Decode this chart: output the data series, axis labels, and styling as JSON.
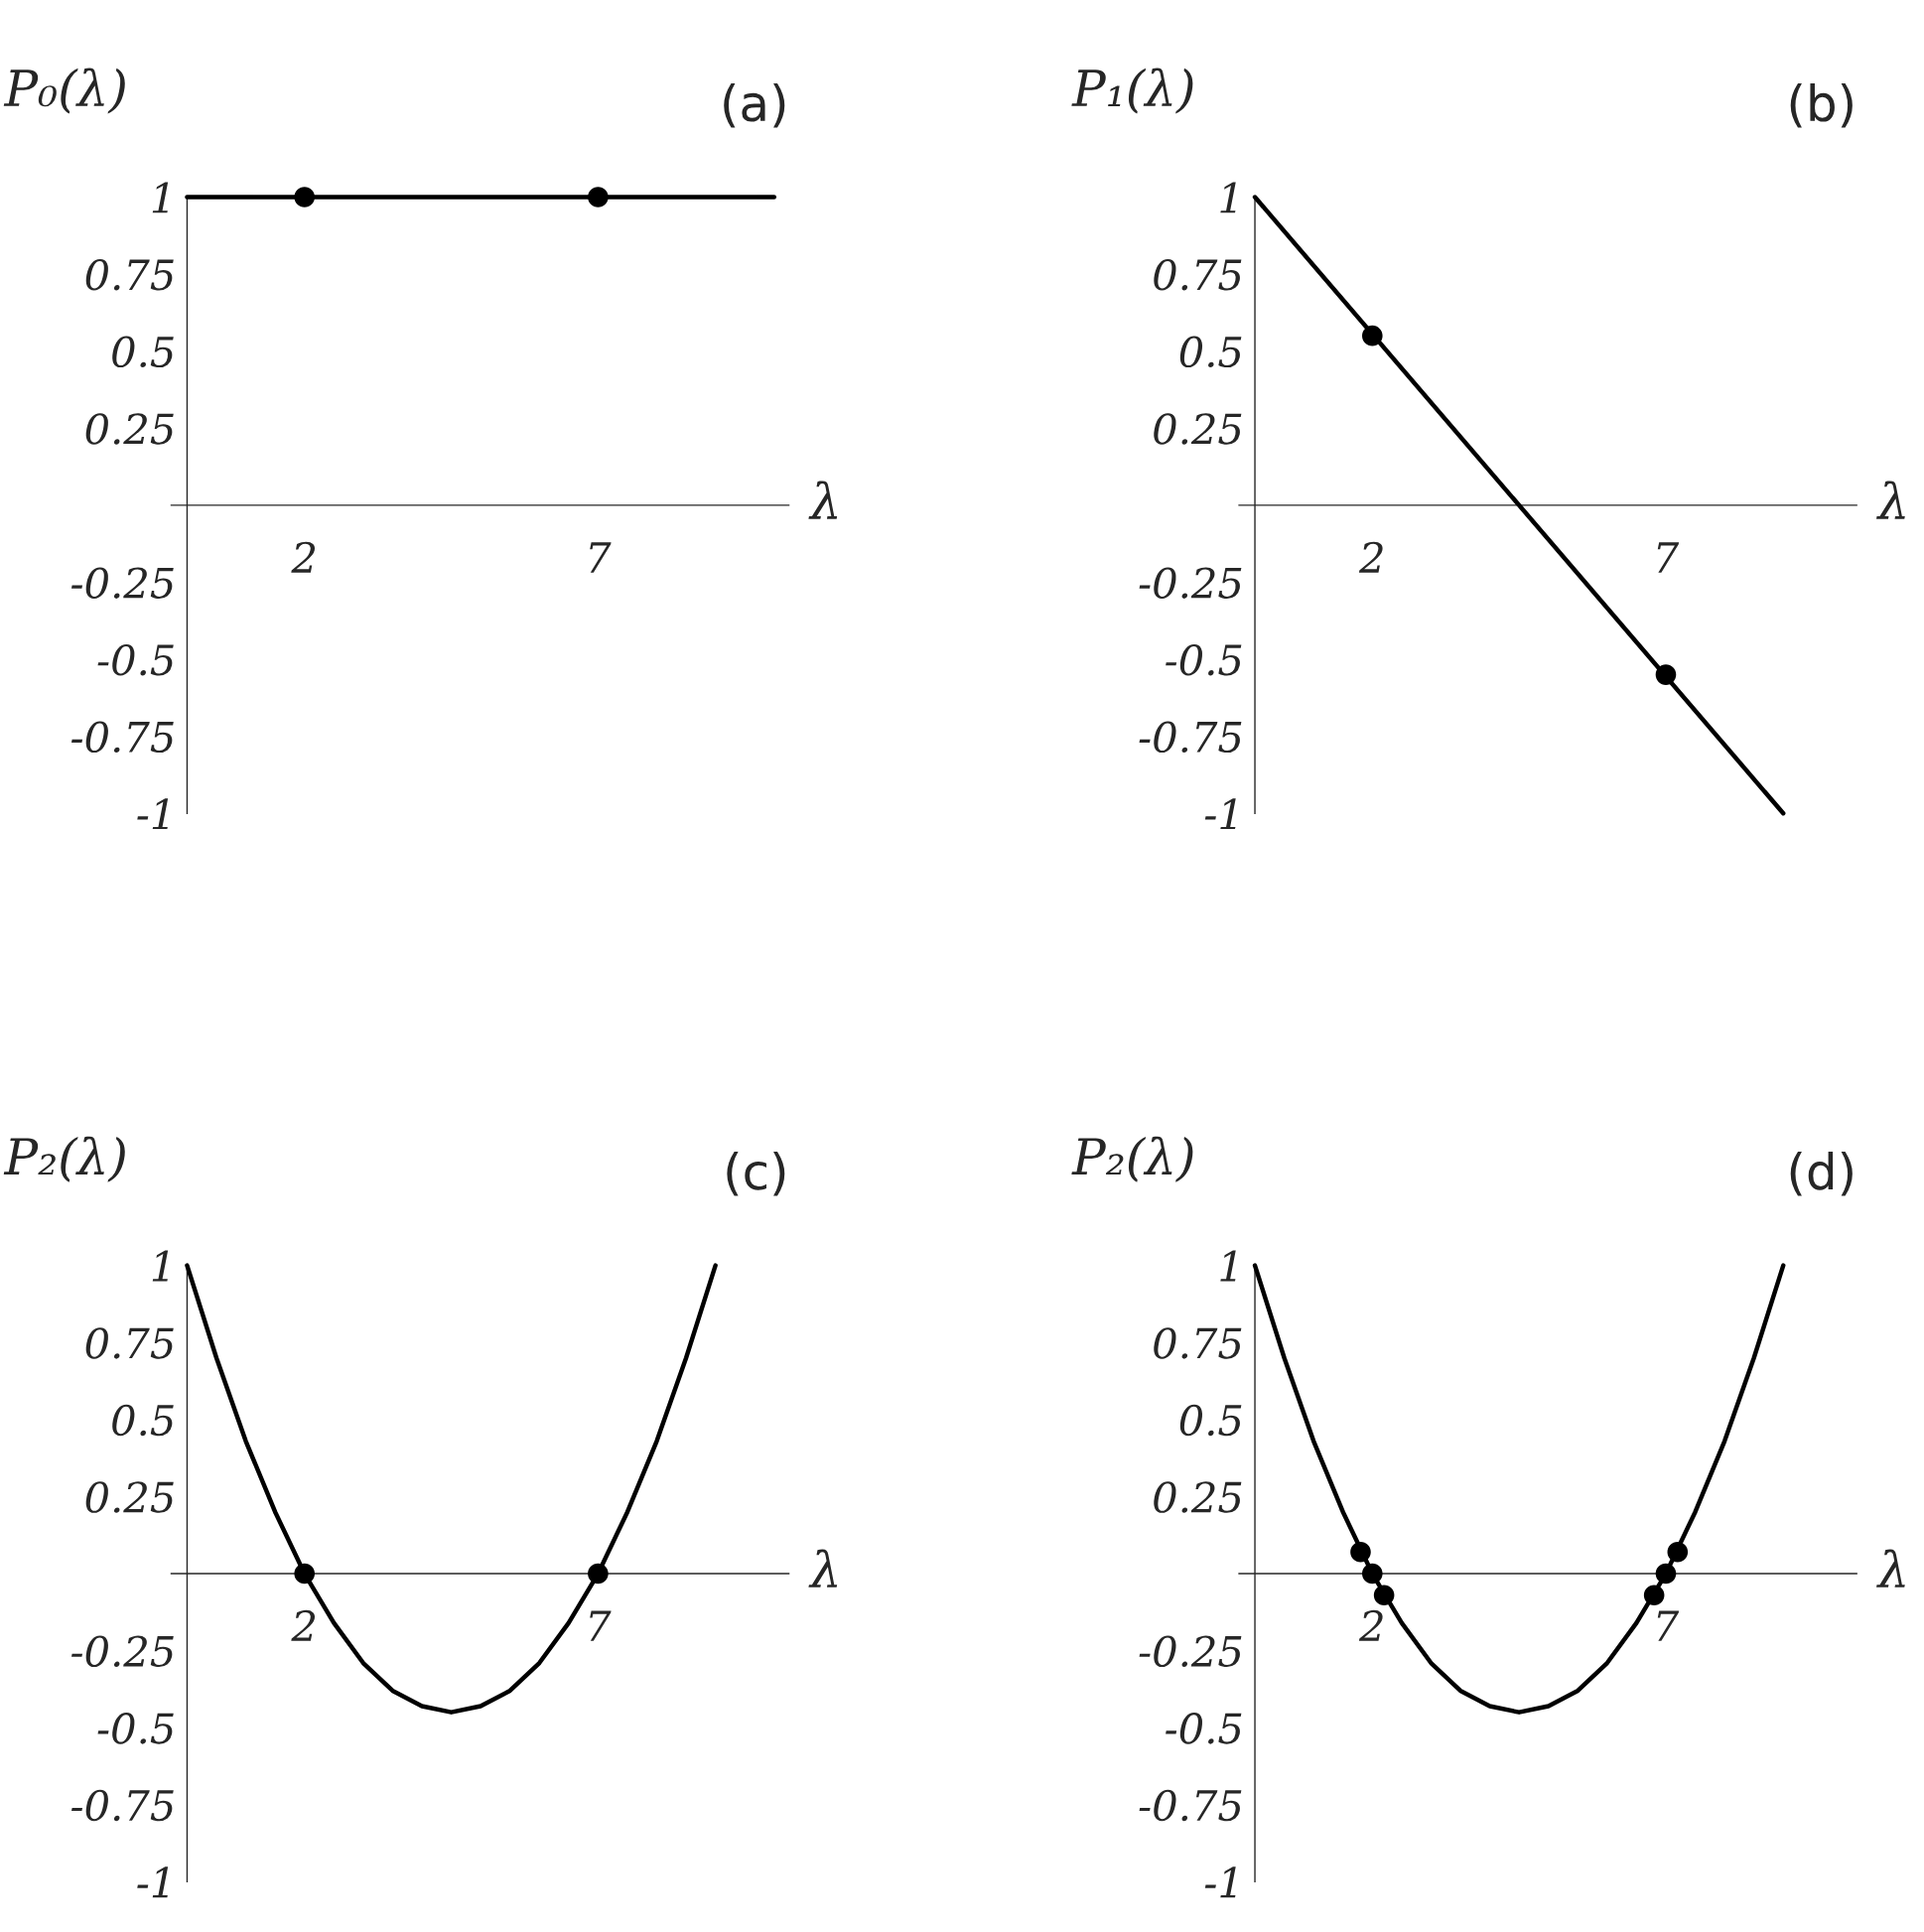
{
  "chart_data": [
    {
      "type": "line",
      "title": "(a)",
      "ylabel": "P₀(λ)",
      "xlabel": "λ",
      "xlim": [
        -0.27,
        10.25
      ],
      "ylim": [
        -1,
        1
      ],
      "xticks": [
        2,
        7
      ],
      "yticks": [
        {
          "value": -1,
          "label": "-1"
        },
        {
          "value": -0.75,
          "label": "-0.75"
        },
        {
          "value": -0.5,
          "label": "-0.5"
        },
        {
          "value": -0.25,
          "label": "-0.25"
        },
        0.25,
        0.5,
        0.75,
        1
      ],
      "grid": false,
      "series": [
        {
          "color": "#000000",
          "x": [
            0,
            10
          ],
          "values": [
            1,
            1
          ]
        },
        {
          "type": "scatter",
          "marker": "circle",
          "color": "#000000",
          "x": [
            2,
            7
          ],
          "values": [
            1,
            1
          ]
        }
      ]
    },
    {
      "type": "line",
      "title": "(b)",
      "ylabel": "P₁(λ)",
      "xlabel": "λ",
      "xlim": [
        -0.27,
        10.25
      ],
      "ylim": [
        -1,
        1
      ],
      "xticks": [
        2,
        7
      ],
      "yticks": [
        {
          "value": -1,
          "label": "-1"
        },
        {
          "value": -0.75,
          "label": "-0.75"
        },
        {
          "value": -0.5,
          "label": "-0.5"
        },
        {
          "value": -0.25,
          "label": "-0.25"
        },
        0.25,
        0.5,
        0.75,
        1
      ],
      "grid": false,
      "series": [
        {
          "color": "#000000",
          "x": [
            0,
            9
          ],
          "values": [
            1,
            -1
          ]
        },
        {
          "type": "scatter",
          "marker": "circle",
          "color": "#000000",
          "x": [
            2,
            7
          ],
          "values": [
            0.55,
            -0.55
          ]
        }
      ]
    },
    {
      "type": "line",
      "title": "(c)",
      "ylabel": "P₂(λ)",
      "xlabel": "λ",
      "xlim": [
        -0.27,
        10.25
      ],
      "ylim": [
        -1,
        1
      ],
      "xticks": [
        2,
        7
      ],
      "yticks": [
        {
          "value": -1,
          "label": "-1"
        },
        {
          "value": -0.75,
          "label": "-0.75"
        },
        {
          "value": -0.5,
          "label": "-0.5"
        },
        {
          "value": -0.25,
          "label": "-0.25"
        },
        0.25,
        0.5,
        0.75,
        1
      ],
      "grid": false,
      "series": [
        {
          "color": "#000000",
          "x": [
            0,
            0.5,
            1,
            1.5,
            2,
            2.5,
            3,
            3.5,
            4,
            4.5,
            5,
            5.5,
            6,
            6.5,
            7,
            7.5,
            8,
            8.5,
            9
          ],
          "values": [
            1,
            0.7,
            0.43,
            0.2,
            0,
            -0.16,
            -0.29,
            -0.38,
            -0.43,
            -0.45,
            -0.43,
            -0.38,
            -0.29,
            -0.16,
            0,
            0.2,
            0.43,
            0.7,
            1
          ]
        },
        {
          "type": "scatter",
          "marker": "circle",
          "color": "#000000",
          "x": [
            2,
            7
          ],
          "values": [
            0,
            0
          ]
        }
      ]
    },
    {
      "type": "line",
      "title": "(d)",
      "ylabel": "P₂(λ)",
      "xlabel": "λ",
      "xlim": [
        -0.27,
        10.25
      ],
      "ylim": [
        -1,
        1
      ],
      "xticks": [
        2,
        7
      ],
      "yticks": [
        {
          "value": -1,
          "label": "-1"
        },
        {
          "value": -0.75,
          "label": "-0.75"
        },
        {
          "value": -0.5,
          "label": "-0.5"
        },
        {
          "value": -0.25,
          "label": "-0.25"
        },
        0.25,
        0.5,
        0.75,
        1
      ],
      "grid": false,
      "series": [
        {
          "color": "#000000",
          "x": [
            0,
            0.5,
            1,
            1.5,
            2,
            2.5,
            3,
            3.5,
            4,
            4.5,
            5,
            5.5,
            6,
            6.5,
            7,
            7.5,
            8,
            8.5,
            9
          ],
          "values": [
            1,
            0.7,
            0.43,
            0.2,
            0,
            -0.16,
            -0.29,
            -0.38,
            -0.43,
            -0.45,
            -0.43,
            -0.38,
            -0.29,
            -0.16,
            0,
            0.2,
            0.43,
            0.7,
            1
          ]
        },
        {
          "type": "scatter",
          "marker": "circle",
          "color": "#000000",
          "x": [
            1.8,
            2,
            2.2,
            6.8,
            7,
            7.2
          ],
          "values": [
            0.07,
            0,
            -0.07,
            -0.07,
            0,
            0.07
          ]
        }
      ]
    }
  ]
}
